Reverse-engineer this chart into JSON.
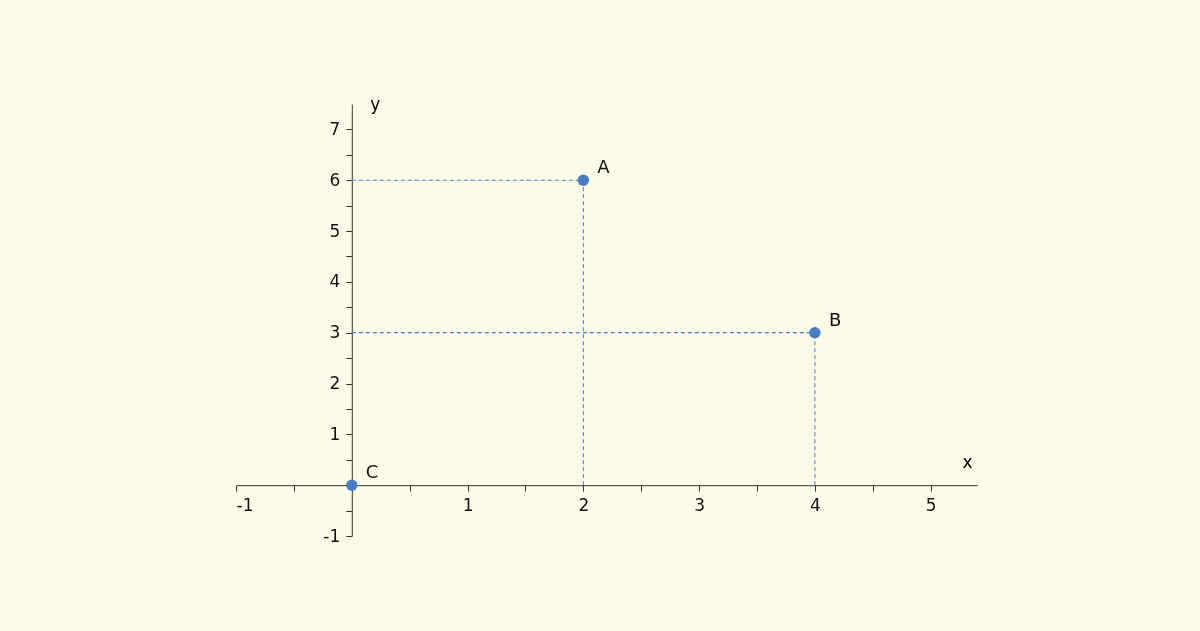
{
  "chart_data": {
    "type": "scatter",
    "xlabel": "x",
    "ylabel": "y",
    "xlim": [
      -1,
      5.4
    ],
    "ylim": [
      -1,
      7.5
    ],
    "xticks": [
      -1,
      {
        "value": -0.5,
        "label": null
      },
      {
        "value": 0,
        "label": null
      },
      {
        "value": 0.5,
        "label": null
      },
      1,
      {
        "value": 1.5,
        "label": null
      },
      2,
      {
        "value": 2.5,
        "label": null
      },
      3,
      {
        "value": 3.5,
        "label": null
      },
      4,
      {
        "value": 4.5,
        "label": null
      },
      5
    ],
    "yticks": [
      -1,
      {
        "value": -0.5,
        "label": null
      },
      {
        "value": 0,
        "label": null
      },
      {
        "value": 0.5,
        "label": null
      },
      1,
      {
        "value": 1.5,
        "label": null
      },
      2,
      {
        "value": 2.5,
        "label": null
      },
      3,
      {
        "value": 3.5,
        "label": null
      },
      4,
      {
        "value": 4.5,
        "label": null
      },
      5,
      {
        "value": 5.5,
        "label": null
      },
      6,
      {
        "value": 6.5,
        "label": null
      },
      7
    ],
    "marker": "circle",
    "grid": false,
    "legend": false,
    "series": [
      {
        "name": "A",
        "color": "#4a7cc4",
        "x": [
          2
        ],
        "values": [
          6
        ]
      },
      {
        "name": "B",
        "color": "#4a7cc4",
        "x": [
          4
        ],
        "values": [
          3
        ]
      },
      {
        "name": "C",
        "color": "#4a7cc4",
        "x": [
          0
        ],
        "values": [
          0
        ]
      }
    ]
  }
}
